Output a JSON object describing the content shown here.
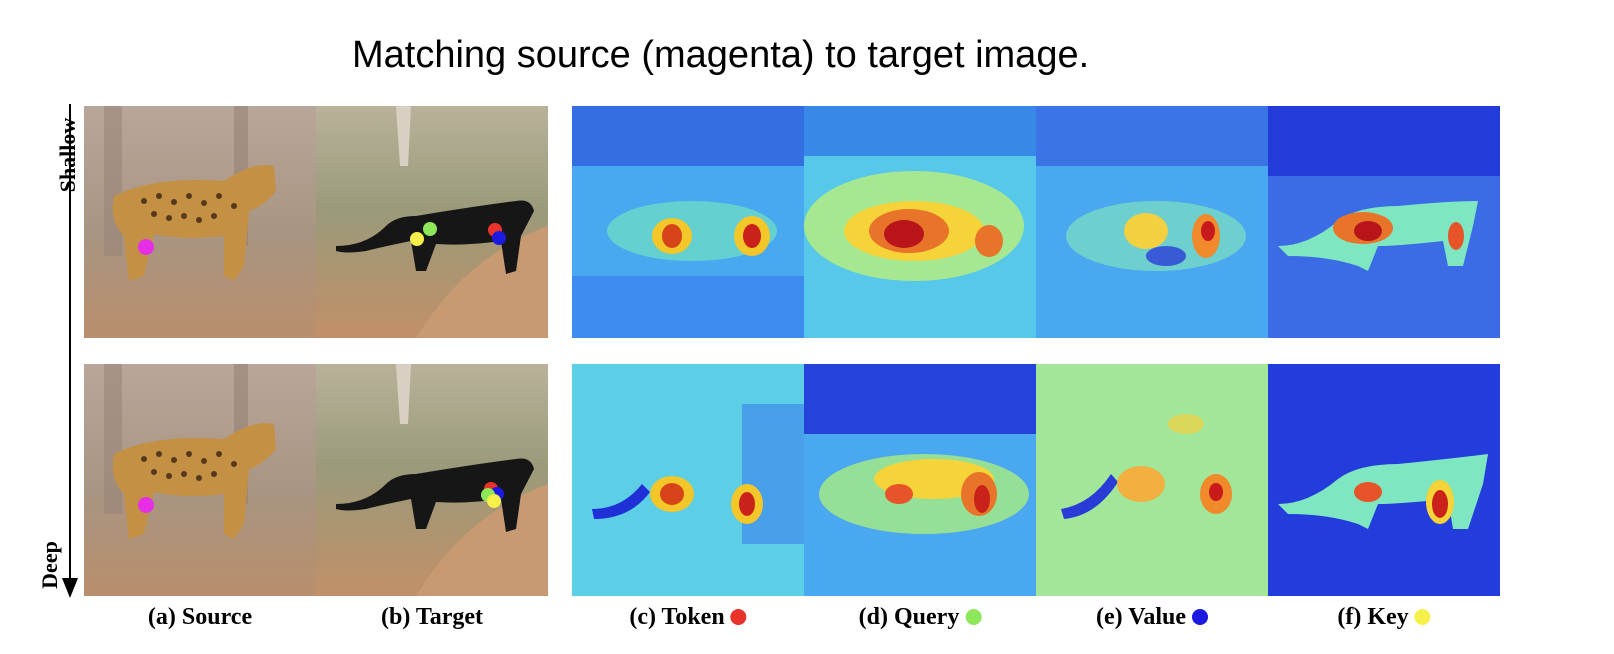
{
  "title": "Matching source (magenta) to target image.",
  "axis": {
    "top_label": "Shallow",
    "bottom_label": "Deep"
  },
  "captions": {
    "source": "(a) Source",
    "target": "(b) Target",
    "token": "(c) Token",
    "query": "(d) Query",
    "value": "(e) Value",
    "key": "(f) Key"
  },
  "marker_colors": {
    "source": "#e62ee6",
    "token": "#e8332b",
    "query": "#8ee65a",
    "value": "#1a1ae0",
    "key": "#f5f04a"
  },
  "rows": [
    "shallow",
    "deep"
  ]
}
